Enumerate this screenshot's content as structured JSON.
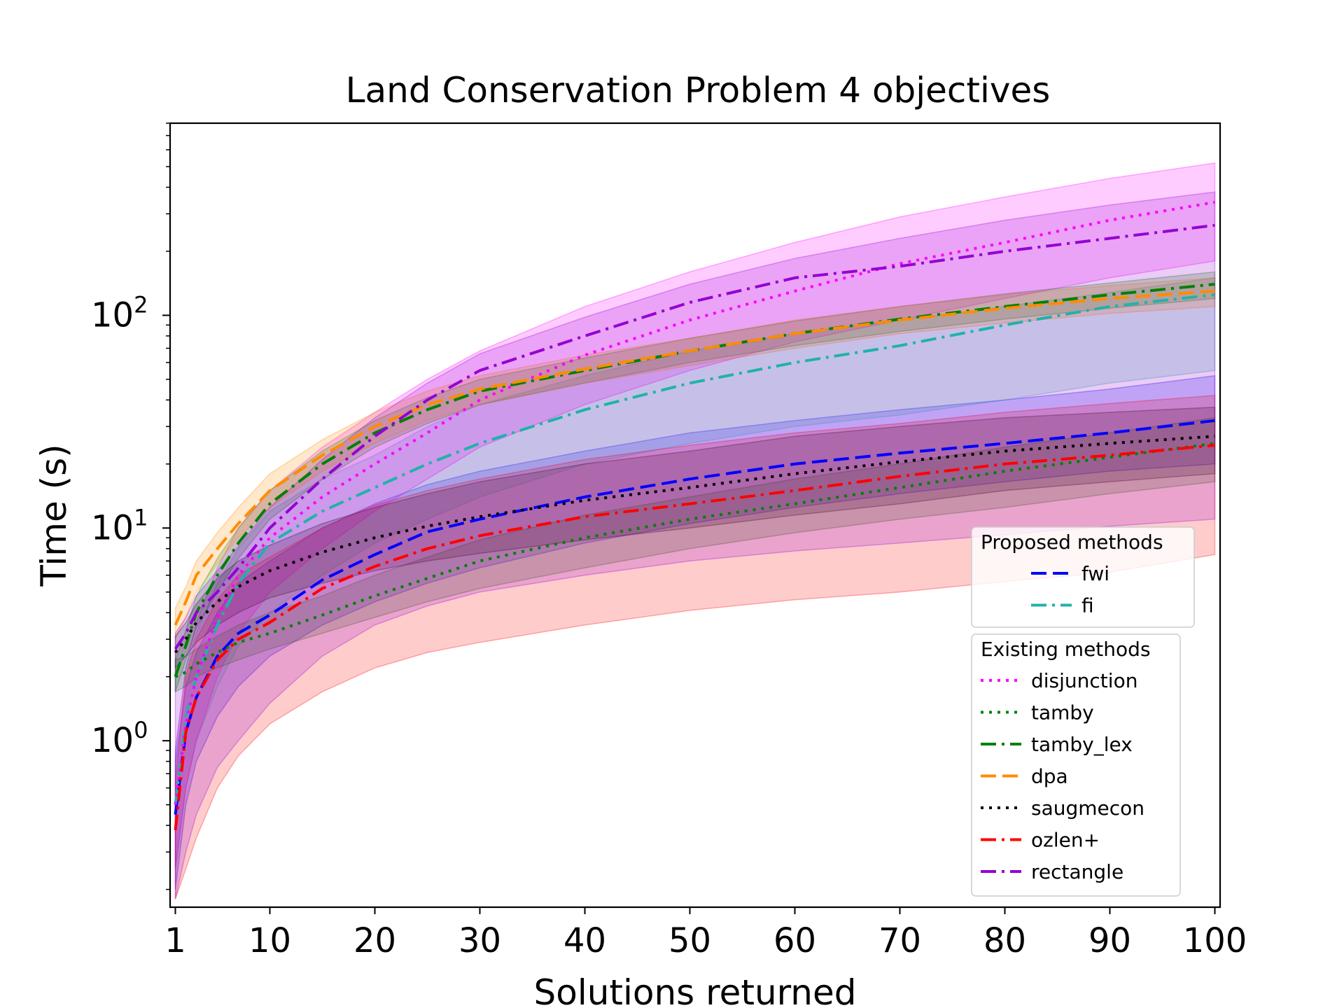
{
  "chart_data": {
    "type": "line",
    "title": "Land Conservation Problem 4 objectives",
    "xlabel": "Solutions returned",
    "ylabel": "Time (s)",
    "yscale": "log",
    "xlim": [
      0.5,
      100.5
    ],
    "ylim": [
      0.165,
      800
    ],
    "grid": false,
    "x_ticks": [
      {
        "value": 1,
        "label": "1"
      },
      {
        "value": 10,
        "label": "10"
      },
      {
        "value": 20,
        "label": "20"
      },
      {
        "value": 30,
        "label": "30"
      },
      {
        "value": 40,
        "label": "40"
      },
      {
        "value": 50,
        "label": "50"
      },
      {
        "value": 60,
        "label": "60"
      },
      {
        "value": 70,
        "label": "70"
      },
      {
        "value": 80,
        "label": "80"
      },
      {
        "value": 90,
        "label": "90"
      },
      {
        "value": 100,
        "label": "100"
      }
    ],
    "y_ticks": [
      {
        "value": 1,
        "base": "10",
        "exp": "0"
      },
      {
        "value": 10,
        "base": "10",
        "exp": "1"
      },
      {
        "value": 100,
        "base": "10",
        "exp": "2"
      }
    ],
    "x": [
      1,
      2,
      3,
      5,
      7,
      10,
      15,
      20,
      25,
      30,
      40,
      50,
      60,
      70,
      80,
      90,
      100
    ],
    "legend_groups": [
      {
        "title": "Proposed methods",
        "placement": "right"
      },
      {
        "title": "Existing methods",
        "placement": "lower-right"
      }
    ],
    "series": [
      {
        "name": "fwi",
        "group": 0,
        "color": "#0000ff",
        "dash": "dashed",
        "values": [
          0.45,
          1.1,
          1.6,
          2.5,
          3.2,
          3.9,
          5.7,
          7.5,
          9.6,
          11.0,
          14.0,
          17.0,
          20.0,
          22.5,
          25.0,
          28.0,
          32.0
        ],
        "lower": [
          0.2,
          0.5,
          0.8,
          1.3,
          1.8,
          2.5,
          3.5,
          4.5,
          5.5,
          6.5,
          8.5,
          10.5,
          12.5,
          14.5,
          16.5,
          18.5,
          20.0
        ],
        "upper": [
          0.8,
          1.8,
          2.6,
          4.0,
          5.5,
          7.0,
          10.0,
          13.0,
          16.0,
          18.5,
          23.0,
          28.0,
          32.0,
          36.0,
          40.0,
          45.0,
          52.0
        ]
      },
      {
        "name": "fi",
        "group": 0,
        "color": "#20b2aa",
        "dash": "dashdot",
        "values": [
          0.5,
          1.3,
          2.0,
          3.5,
          5.5,
          8.5,
          12.0,
          15.5,
          20.0,
          25.0,
          36.0,
          48.0,
          60.0,
          72.0,
          90.0,
          110.0,
          125.0
        ],
        "lower": [
          0.25,
          0.6,
          1.0,
          1.8,
          2.8,
          4.0,
          6.0,
          8.5,
          11.0,
          14.0,
          20.0,
          25.0,
          30.0,
          34.0,
          40.0,
          48.0,
          55.0
        ],
        "upper": [
          0.9,
          2.2,
          3.2,
          5.5,
          8.0,
          12.0,
          17.0,
          22.0,
          30.0,
          38.0,
          52.0,
          68.0,
          82.0,
          95.0,
          110.0,
          128.0,
          150.0
        ]
      },
      {
        "name": "disjunction",
        "group": 1,
        "color": "#ff00ff",
        "dash": "dotted",
        "values": [
          0.5,
          1.2,
          2.0,
          3.8,
          6.0,
          9.0,
          14.0,
          20.0,
          28.0,
          40.0,
          65.0,
          95.0,
          130.0,
          175.0,
          220.0,
          280.0,
          340.0
        ],
        "lower": [
          0.25,
          0.6,
          1.0,
          2.0,
          3.2,
          5.0,
          8.0,
          12.0,
          17.0,
          24.0,
          38.0,
          55.0,
          75.0,
          95.0,
          120.0,
          150.0,
          180.0
        ],
        "upper": [
          0.9,
          2.2,
          3.6,
          6.5,
          10.0,
          15.0,
          24.0,
          35.0,
          50.0,
          68.0,
          110.0,
          160.0,
          220.0,
          290.0,
          360.0,
          440.0,
          520.0
        ]
      },
      {
        "name": "tamby",
        "group": 1,
        "color": "#008000",
        "dash": "dotted",
        "values": [
          2.0,
          2.1,
          2.3,
          2.6,
          2.9,
          3.2,
          3.9,
          4.8,
          5.8,
          7.0,
          9.0,
          11.0,
          13.0,
          15.5,
          18.5,
          21.5,
          25.0
        ],
        "lower": [
          1.7,
          1.8,
          2.0,
          2.2,
          2.4,
          2.7,
          3.2,
          3.8,
          4.5,
          5.2,
          6.5,
          8.0,
          9.5,
          11.0,
          12.5,
          14.5,
          16.5
        ],
        "upper": [
          2.4,
          2.5,
          2.7,
          3.1,
          3.5,
          4.0,
          4.8,
          6.0,
          7.3,
          8.8,
          11.5,
          14.0,
          17.0,
          20.0,
          24.0,
          28.0,
          33.0
        ]
      },
      {
        "name": "tamby_lex",
        "group": 1,
        "color": "#008000",
        "dash": "dashdot",
        "values": [
          2.0,
          2.8,
          4.0,
          6.0,
          8.5,
          13.0,
          20.0,
          28.0,
          36.0,
          44.0,
          55.0,
          68.0,
          82.0,
          96.0,
          110.0,
          125.0,
          140.0
        ],
        "lower": [
          1.7,
          2.4,
          3.4,
          5.0,
          7.2,
          11.0,
          17.0,
          24.0,
          31.0,
          38.0,
          48.0,
          60.0,
          72.0,
          84.0,
          96.0,
          108.0,
          120.0
        ],
        "upper": [
          2.4,
          3.3,
          4.8,
          7.2,
          10.0,
          15.0,
          23.0,
          32.0,
          41.0,
          50.0,
          63.0,
          78.0,
          94.0,
          110.0,
          126.0,
          142.0,
          160.0
        ]
      },
      {
        "name": "dpa",
        "group": 1,
        "color": "#ff8c00",
        "dash": "dashed",
        "values": [
          3.5,
          4.5,
          6.0,
          8.0,
          10.5,
          15.0,
          22.0,
          30.0,
          38.0,
          45.0,
          56.0,
          68.0,
          82.0,
          95.0,
          108.0,
          120.0,
          130.0
        ],
        "lower": [
          3.0,
          3.8,
          5.0,
          6.8,
          9.0,
          12.5,
          18.5,
          25.0,
          32.0,
          38.0,
          48.0,
          58.0,
          70.0,
          82.0,
          92.0,
          102.0,
          110.0
        ],
        "upper": [
          4.2,
          5.3,
          7.0,
          9.5,
          12.5,
          18.0,
          26.0,
          35.0,
          44.0,
          52.0,
          65.0,
          78.0,
          95.0,
          110.0,
          125.0,
          138.0,
          150.0
        ]
      },
      {
        "name": "saugmecon",
        "group": 1,
        "color": "#000000",
        "dash": "dotted",
        "values": [
          2.6,
          3.0,
          3.6,
          4.5,
          5.3,
          6.3,
          7.7,
          9.0,
          10.2,
          11.3,
          13.5,
          15.5,
          18.0,
          20.5,
          23.0,
          25.0,
          27.0
        ],
        "lower": [
          2.2,
          2.5,
          2.9,
          3.5,
          4.0,
          4.7,
          5.5,
          6.3,
          7.0,
          7.6,
          8.8,
          10.0,
          11.5,
          13.0,
          15.0,
          16.5,
          18.0
        ],
        "upper": [
          3.1,
          3.6,
          4.4,
          5.8,
          7.0,
          8.3,
          10.5,
          12.5,
          14.5,
          16.5,
          20.0,
          23.0,
          27.0,
          30.0,
          33.0,
          35.0,
          37.0
        ]
      },
      {
        "name": "ozlen+",
        "group": 1,
        "color": "#ff0000",
        "dash": "dashdot",
        "values": [
          0.38,
          1.1,
          1.6,
          2.4,
          3.0,
          3.6,
          5.2,
          6.6,
          8.0,
          9.2,
          11.3,
          13.0,
          15.0,
          17.5,
          20.0,
          22.0,
          24.5
        ],
        "lower": [
          0.18,
          0.25,
          0.35,
          0.6,
          0.85,
          1.2,
          1.7,
          2.2,
          2.6,
          2.9,
          3.5,
          4.1,
          4.6,
          5.0,
          5.6,
          6.2,
          7.5
        ],
        "upper": [
          0.65,
          2.0,
          3.0,
          4.6,
          6.0,
          7.3,
          10.0,
          12.8,
          15.0,
          17.0,
          21.0,
          24.5,
          28.0,
          31.0,
          35.0,
          38.5,
          42.0
        ]
      },
      {
        "name": "rectangle",
        "group": 1,
        "color": "#9400d3",
        "dash": "dashdot",
        "values": [
          2.7,
          3.2,
          4.0,
          5.0,
          6.5,
          10.0,
          17.0,
          27.0,
          40.0,
          55.0,
          80.0,
          115.0,
          150.0,
          170.0,
          200.0,
          230.0,
          265.0
        ],
        "lower": [
          0.18,
          0.3,
          0.45,
          0.75,
          1.0,
          1.5,
          2.5,
          3.5,
          4.3,
          5.0,
          6.0,
          7.0,
          7.8,
          8.5,
          9.3,
          10.2,
          11.0
        ],
        "upper": [
          3.2,
          3.8,
          4.8,
          6.3,
          8.2,
          12.5,
          21.0,
          33.0,
          48.0,
          66.0,
          98.0,
          140.0,
          185.0,
          230.0,
          280.0,
          330.0,
          380.0
        ]
      }
    ]
  }
}
